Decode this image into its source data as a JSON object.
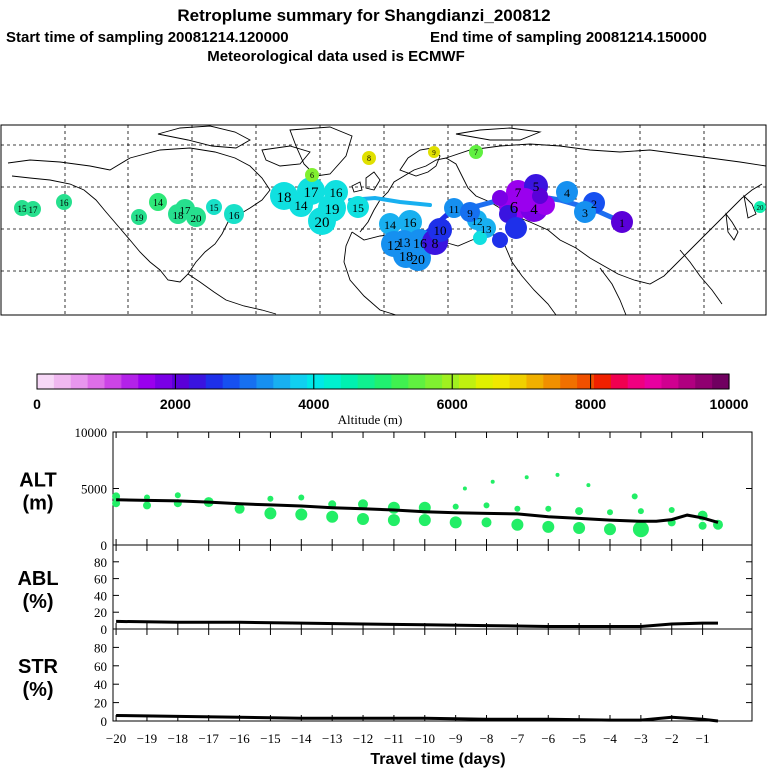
{
  "header": {
    "title": "Retroplume summary for Shangdianzi_200812",
    "start_label": "Start time of sampling 20081214.120000",
    "end_label": "End time of sampling 20081214.150000",
    "met_label": "Meteorological data used is ECMWF"
  },
  "colorbar": {
    "ticks": [
      "0",
      "2000",
      "4000",
      "6000",
      "8000",
      "10000"
    ],
    "label": "Altitude (m)",
    "colors": [
      "#f7d8f7",
      "#f0b8f0",
      "#e896ee",
      "#dd6ee8",
      "#cc44e6",
      "#b322e8",
      "#9a00ee",
      "#7a00e6",
      "#5a00d8",
      "#3a14e0",
      "#1e30ea",
      "#1650f0",
      "#1670f0",
      "#1690f0",
      "#18b0f0",
      "#10d0f0",
      "#00e8e8",
      "#00f0d0",
      "#00f0b0",
      "#10f090",
      "#20f070",
      "#40f050",
      "#60f040",
      "#80f030",
      "#a0f020",
      "#c0f010",
      "#e0f000",
      "#f0e800",
      "#f0d000",
      "#f0b000",
      "#f09000",
      "#f07000",
      "#f05000",
      "#f02000",
      "#f00050",
      "#f00080",
      "#e800a0",
      "#d00090",
      "#b00080",
      "#900070",
      "#700060"
    ]
  },
  "map": {
    "labels": [
      {
        "t": "15",
        "c": "#26e08e"
      },
      {
        "t": "17",
        "c": "#26e08e"
      },
      {
        "t": "16",
        "c": "#26e08e"
      },
      {
        "t": "14",
        "c": "#2ee878"
      },
      {
        "t": "19",
        "c": "#26e08e"
      },
      {
        "t": "17",
        "c": "#26e08e"
      },
      {
        "t": "18",
        "c": "#26e08e"
      },
      {
        "t": "20",
        "c": "#26e08e"
      },
      {
        "t": "15",
        "c": "#18e0c8"
      },
      {
        "t": "16",
        "c": "#18e0c8"
      },
      {
        "t": "18",
        "c": "#10e0e0"
      },
      {
        "t": "17",
        "c": "#10e0e0"
      },
      {
        "t": "16",
        "c": "#10e0e0"
      },
      {
        "t": "14",
        "c": "#10e0e0"
      },
      {
        "t": "19",
        "c": "#10e0e0"
      },
      {
        "t": "20",
        "c": "#10e0e0"
      },
      {
        "t": "15",
        "c": "#10e0e0"
      },
      {
        "t": "14",
        "c": "#18b0f0"
      },
      {
        "t": "16",
        "c": "#18b0f0"
      },
      {
        "t": "12",
        "c": "#1690f0"
      },
      {
        "t": "13",
        "c": "#1690f0"
      },
      {
        "t": "16",
        "c": "#1690f0"
      },
      {
        "t": "18",
        "c": "#1690f0"
      },
      {
        "t": "20",
        "c": "#1690f0"
      },
      {
        "t": "8",
        "c": "#3a14e0"
      },
      {
        "t": "10",
        "c": "#1e30ea"
      },
      {
        "t": "12",
        "c": "#18b0f0"
      },
      {
        "t": "13",
        "c": "#18b0f0"
      },
      {
        "t": "11",
        "c": "#1690f0"
      },
      {
        "t": "9",
        "c": "#1670f0"
      },
      {
        "t": "7",
        "c": "#9a00ee"
      },
      {
        "t": "6",
        "c": "#9a00ee"
      },
      {
        "t": "4",
        "c": "#7a00e6"
      },
      {
        "t": "5",
        "c": "#3a14e0"
      },
      {
        "t": "4",
        "c": "#1690f0"
      },
      {
        "t": "2",
        "c": "#1650f0"
      },
      {
        "t": "3",
        "c": "#1690f0"
      },
      {
        "t": "1",
        "c": "#5a00d8"
      },
      {
        "t": "8",
        "c": "#e0e000"
      },
      {
        "t": "9",
        "c": "#e0e000"
      },
      {
        "t": "6",
        "c": "#80f030"
      },
      {
        "t": "7",
        "c": "#60f040"
      },
      {
        "t": "20",
        "c": "#10f0b0"
      }
    ]
  },
  "chart_data": [
    {
      "type": "scatter",
      "name": "ALT",
      "ylabel": "ALT\n(m)",
      "ylabel_lines": [
        "ALT",
        "(m)"
      ],
      "xlabel": "Travel time (days)",
      "xlim": [
        -20.1,
        0.6
      ],
      "ylim": [
        0,
        10000
      ],
      "yticks": [
        "0",
        "5000",
        "10000"
      ],
      "xticks": [
        "-20",
        "-19",
        "-18",
        "-17",
        "-16",
        "-15",
        "-14",
        "-13",
        "-12",
        "-11",
        "-10",
        "-9",
        "-8",
        "-7",
        "-6",
        "-5",
        "-4",
        "-3",
        "-2",
        "-1"
      ],
      "median_line": {
        "x": [
          -20,
          -19,
          -18,
          -17,
          -16,
          -15,
          -14,
          -13,
          -12,
          -11,
          -10,
          -9,
          -8,
          -7,
          -6,
          -5,
          -4,
          -3,
          -2.5,
          -2,
          -1.5,
          -1,
          -0.5
        ],
        "y": [
          4000,
          3950,
          3900,
          3800,
          3650,
          3550,
          3450,
          3300,
          3200,
          3100,
          2950,
          2850,
          2800,
          2750,
          2500,
          2350,
          2200,
          2100,
          2100,
          2250,
          2650,
          2400,
          2000
        ]
      },
      "points": [
        {
          "x": -20,
          "y": 4300,
          "s": 4
        },
        {
          "x": -20,
          "y": 3700,
          "s": 4
        },
        {
          "x": -19,
          "y": 4200,
          "s": 3
        },
        {
          "x": -19,
          "y": 3500,
          "s": 4
        },
        {
          "x": -18,
          "y": 4400,
          "s": 3
        },
        {
          "x": -18,
          "y": 3700,
          "s": 4
        },
        {
          "x": -17,
          "y": 3800,
          "s": 5
        },
        {
          "x": -16,
          "y": 3200,
          "s": 5
        },
        {
          "x": -15,
          "y": 4100,
          "s": 3
        },
        {
          "x": -15,
          "y": 2800,
          "s": 6
        },
        {
          "x": -14,
          "y": 4200,
          "s": 3
        },
        {
          "x": -14,
          "y": 2700,
          "s": 6
        },
        {
          "x": -13,
          "y": 3600,
          "s": 4
        },
        {
          "x": -13,
          "y": 2500,
          "s": 6
        },
        {
          "x": -12,
          "y": 3600,
          "s": 5
        },
        {
          "x": -12,
          "y": 2300,
          "s": 6
        },
        {
          "x": -11,
          "y": 3300,
          "s": 6
        },
        {
          "x": -11,
          "y": 2200,
          "s": 6
        },
        {
          "x": -10,
          "y": 3300,
          "s": 6
        },
        {
          "x": -10,
          "y": 2200,
          "s": 6
        },
        {
          "x": -9,
          "y": 3400,
          "s": 3
        },
        {
          "x": -9,
          "y": 2000,
          "s": 6
        },
        {
          "x": -8.7,
          "y": 5000,
          "s": 2
        },
        {
          "x": -8,
          "y": 3500,
          "s": 3
        },
        {
          "x": -8,
          "y": 2000,
          "s": 5
        },
        {
          "x": -7.8,
          "y": 5600,
          "s": 2
        },
        {
          "x": -7,
          "y": 3200,
          "s": 3
        },
        {
          "x": -7,
          "y": 1800,
          "s": 6
        },
        {
          "x": -6.7,
          "y": 6000,
          "s": 2
        },
        {
          "x": -6,
          "y": 3200,
          "s": 3
        },
        {
          "x": -6,
          "y": 1600,
          "s": 6
        },
        {
          "x": -5.7,
          "y": 6200,
          "s": 2
        },
        {
          "x": -5,
          "y": 3000,
          "s": 4
        },
        {
          "x": -5,
          "y": 1500,
          "s": 6
        },
        {
          "x": -4.7,
          "y": 5300,
          "s": 2
        },
        {
          "x": -4,
          "y": 2900,
          "s": 3
        },
        {
          "x": -4,
          "y": 1400,
          "s": 6
        },
        {
          "x": -3.2,
          "y": 4300,
          "s": 3
        },
        {
          "x": -3,
          "y": 3000,
          "s": 3
        },
        {
          "x": -3,
          "y": 1400,
          "s": 8
        },
        {
          "x": -2,
          "y": 3100,
          "s": 3
        },
        {
          "x": -2,
          "y": 2000,
          "s": 4
        },
        {
          "x": -1,
          "y": 2600,
          "s": 5
        },
        {
          "x": -1,
          "y": 1700,
          "s": 4
        },
        {
          "x": -0.5,
          "y": 1800,
          "s": 5
        }
      ],
      "marker_color": "#22ee66"
    },
    {
      "type": "line",
      "name": "ABL",
      "ylabel_lines": [
        "ABL",
        "(%)"
      ],
      "ylim": [
        0,
        100
      ],
      "yticks": [
        "0",
        "20",
        "40",
        "60",
        "80"
      ],
      "x": [
        -20,
        -18,
        -16,
        -14,
        -12,
        -10,
        -8,
        -6,
        -4,
        -3,
        -2,
        -1,
        -0.5
      ],
      "y": [
        9,
        8,
        8,
        7,
        6,
        5,
        4,
        3,
        3,
        3,
        6,
        7,
        7
      ]
    },
    {
      "type": "line",
      "name": "STR",
      "ylabel_lines": [
        "STR",
        "(%)"
      ],
      "ylim": [
        0,
        100
      ],
      "yticks": [
        "0",
        "20",
        "40",
        "60",
        "80"
      ],
      "x": [
        -20,
        -18,
        -16,
        -14,
        -12,
        -10,
        -8,
        -6,
        -4,
        -3,
        -2,
        -1,
        -0.5
      ],
      "y": [
        6,
        5,
        4,
        3,
        3,
        3,
        2,
        2,
        1,
        1,
        4,
        2,
        0
      ]
    }
  ]
}
